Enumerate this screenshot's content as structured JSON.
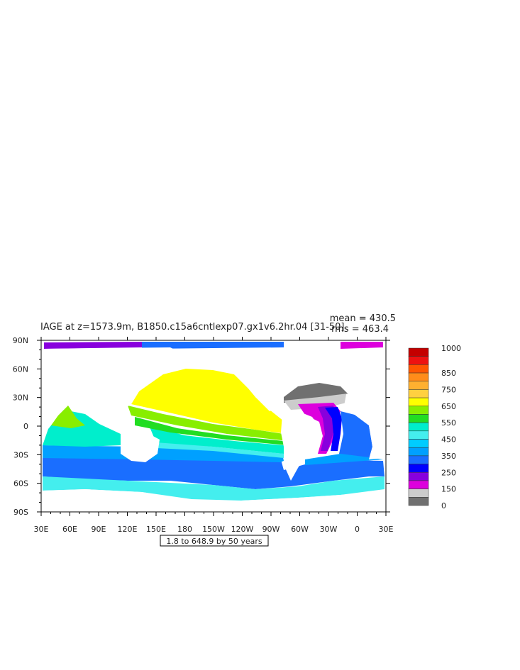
{
  "title": "IAGE at z=1573.9m, B1850.c15a6cntlexp07.gx1v6.2hr.04 [31-50]",
  "stats": {
    "mean": "mean = 430.5",
    "rms": "rms = 463.4"
  },
  "contour_info": "1.8 to 648.9 by 50 years",
  "axes": {
    "lon_ticks": [
      "30E",
      "60E",
      "90E",
      "120E",
      "150E",
      "180",
      "150W",
      "120W",
      "90W",
      "60W",
      "30W",
      "0",
      "30E"
    ],
    "lat_ticks": [
      "90N",
      "60N",
      "30N",
      "0",
      "30S",
      "60S",
      "90S"
    ]
  },
  "colorbar": {
    "labels": [
      "1000",
      "850",
      "750",
      "650",
      "550",
      "450",
      "350",
      "250",
      "150",
      "0"
    ],
    "colors": [
      "#c40000",
      "#ee1111",
      "#ff5500",
      "#ff8c1a",
      "#ffb030",
      "#ffd040",
      "#ffff00",
      "#88ee00",
      "#22dd22",
      "#00eecc",
      "#44eeee",
      "#00ccff",
      "#00a0ff",
      "#1a6eff",
      "#0000ff",
      "#8800dd",
      "#dd00dd",
      "#cccccc",
      "#707070"
    ]
  },
  "colors": {
    "land": "#ffffff",
    "frame": "#000000"
  }
}
